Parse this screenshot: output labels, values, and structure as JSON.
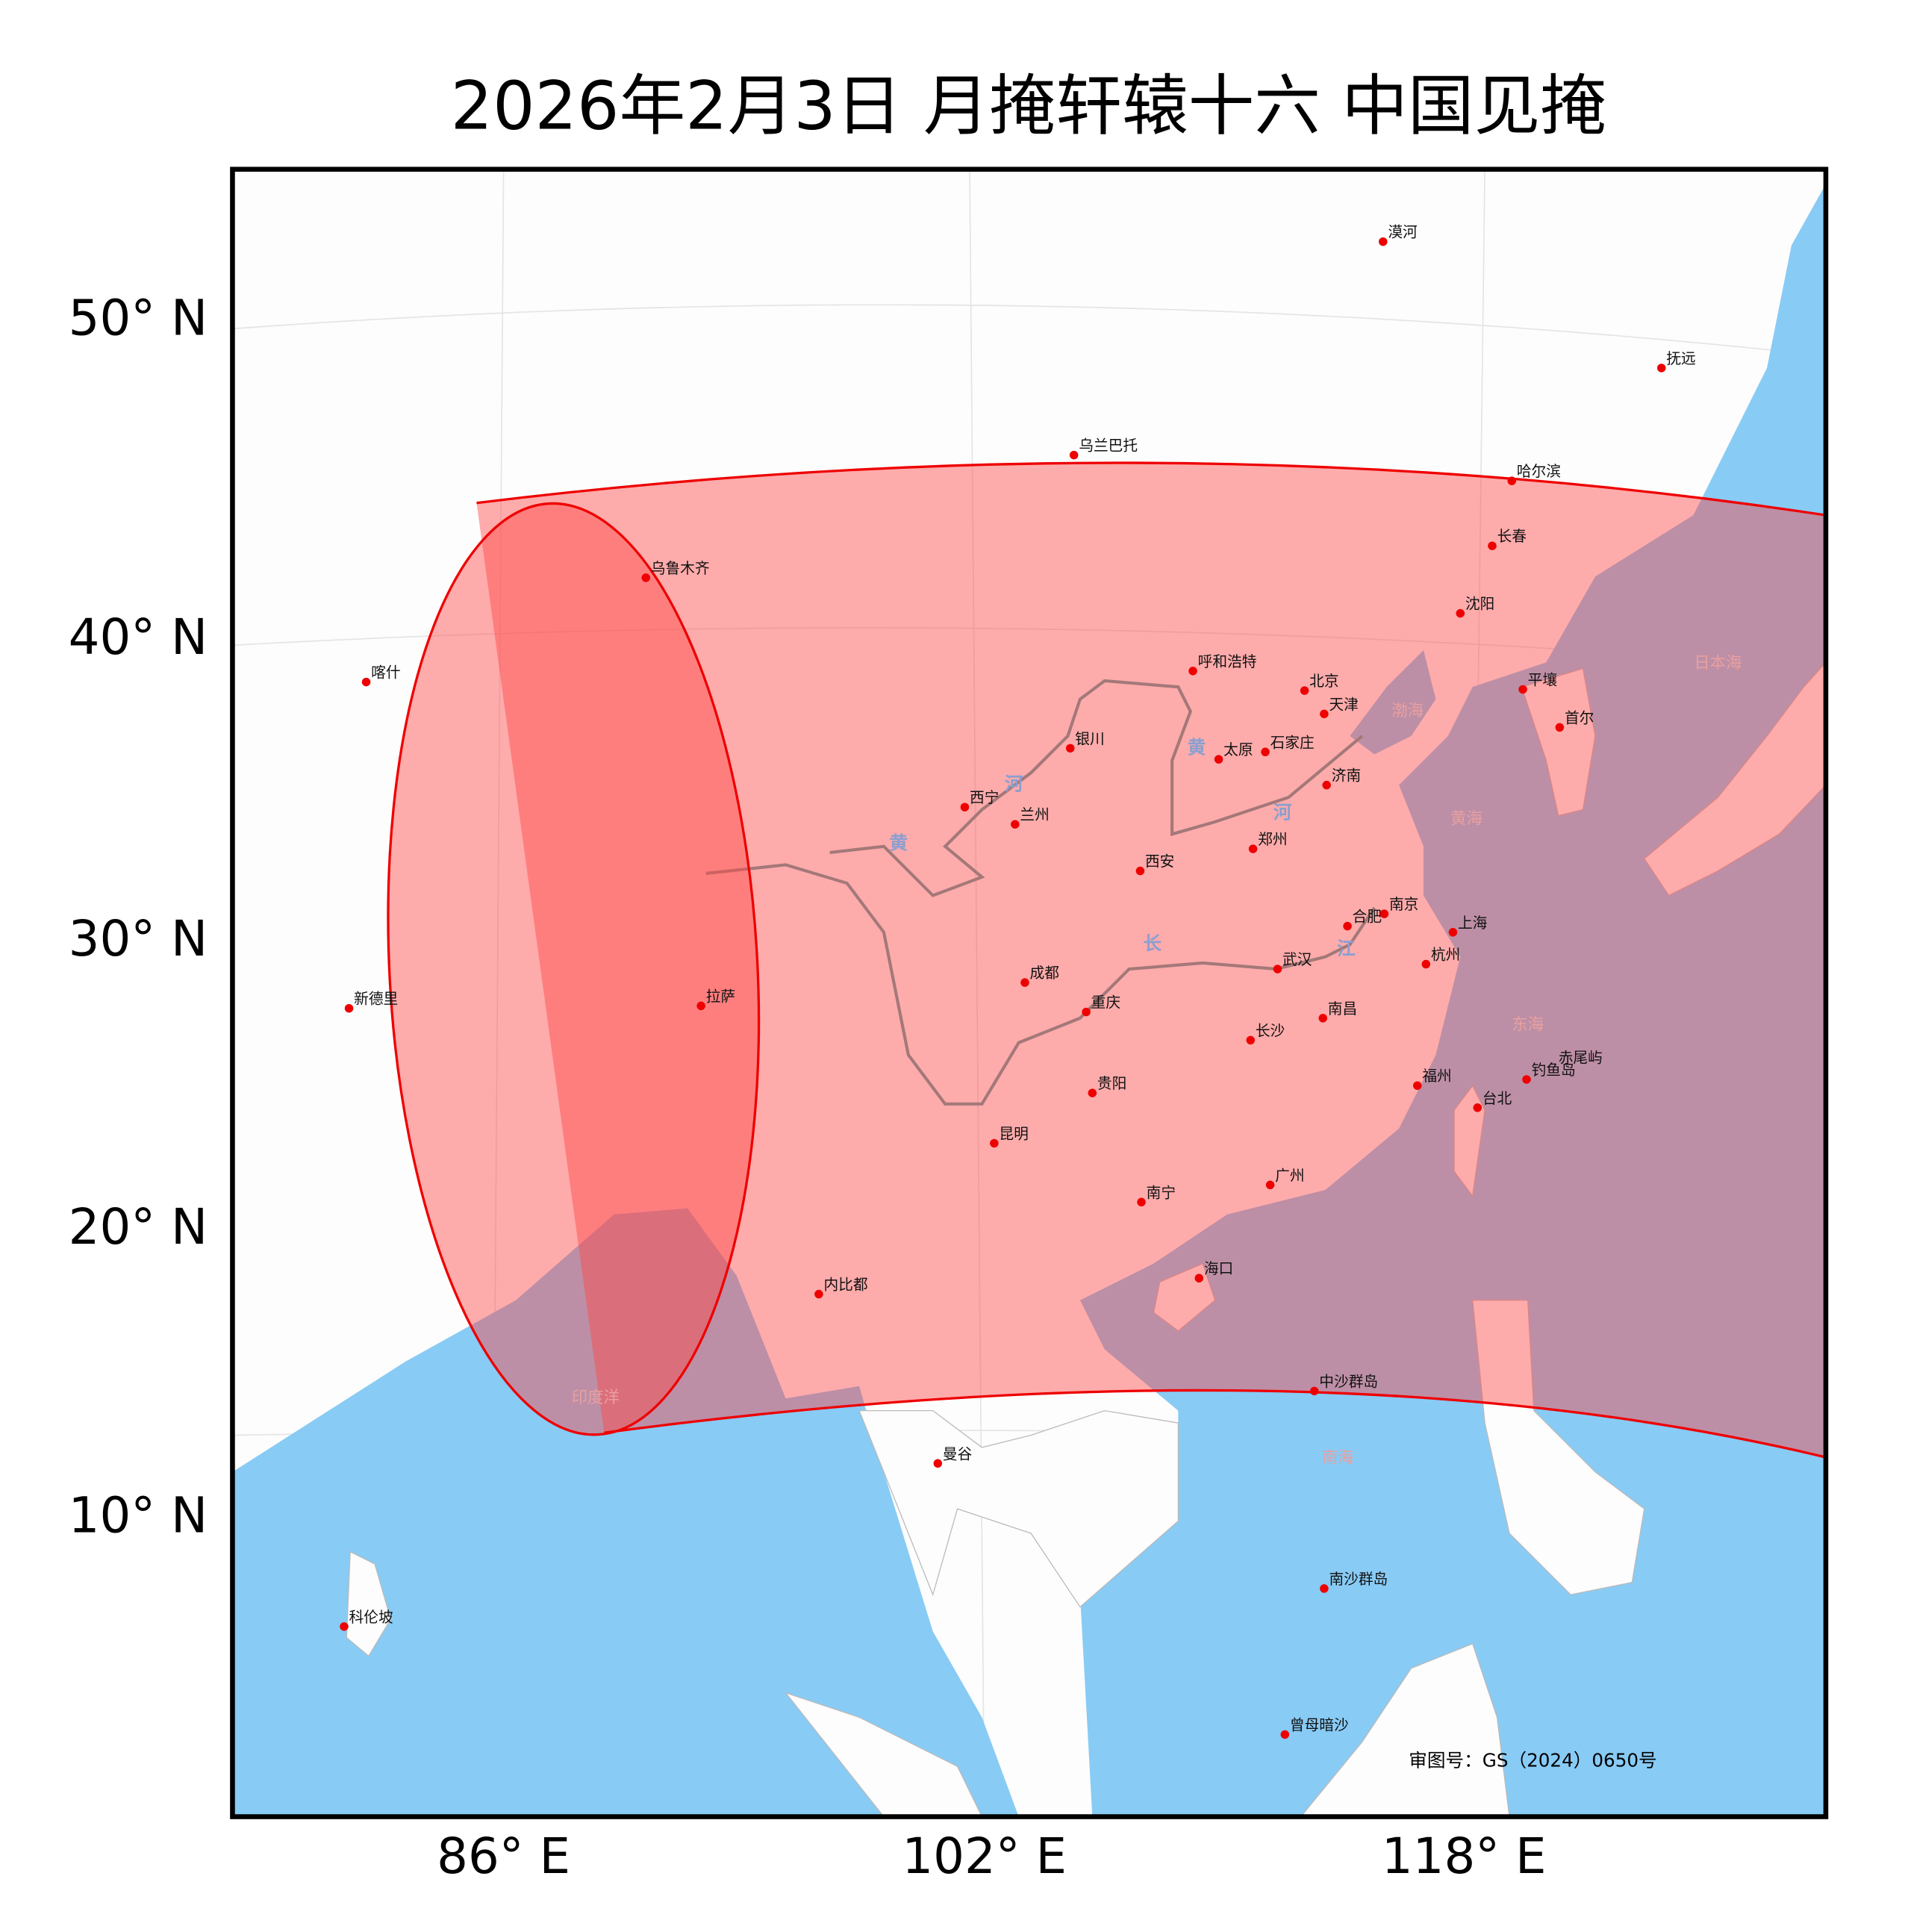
{
  "title": "2026年2月3日 月掩轩辕十六 中国见掩",
  "latitude_labels": [
    "50° N",
    "40° N",
    "30° N",
    "20° N",
    "10° N"
  ],
  "longitude_labels": [
    "86° E",
    "102° E",
    "118° E"
  ],
  "cities": [
    "漠河",
    "抚远",
    "乌兰巴托",
    "哈尔滨",
    "长春",
    "乌鲁木齐",
    "沈阳",
    "喀什",
    "呼和浩特",
    "北京",
    "平壤",
    "天津",
    "首尔",
    "银川",
    "太原",
    "石家庄",
    "济南",
    "西宁",
    "兰州",
    "郑州",
    "西安",
    "合肥",
    "南京",
    "上海",
    "杭州",
    "武汉",
    "成都",
    "拉萨",
    "新德里",
    "重庆",
    "南昌",
    "长沙",
    "福州",
    "钓鱼岛",
    "赤尾屿",
    "台北",
    "贵阳",
    "昆明",
    "广州",
    "南宁",
    "海口",
    "内比都",
    "中沙群岛",
    "曼谷",
    "南沙群岛",
    "科伦坡",
    "曾母暗沙"
  ],
  "sea_labels": [
    "日本海",
    "渤海",
    "黄海",
    "东海",
    "南海",
    "印度洋"
  ],
  "river_labels": [
    "黄",
    "河",
    "黄",
    "河",
    "长",
    "江"
  ],
  "approval_number": "审图号：GS（2024）0650号"
}
